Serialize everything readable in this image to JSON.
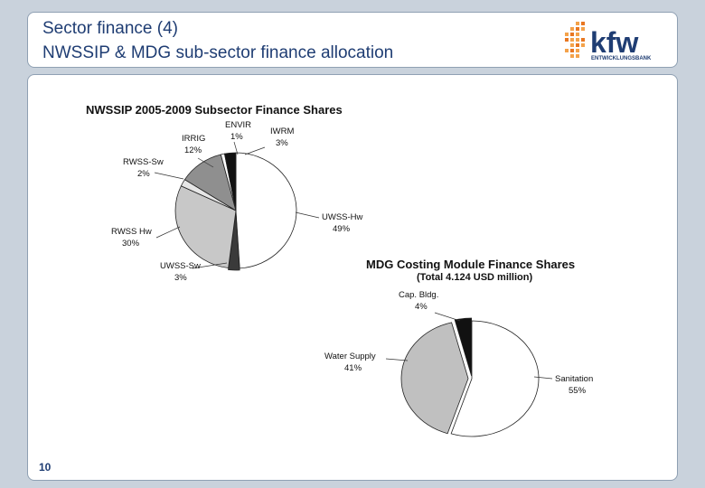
{
  "header": {
    "title_line1": "Sector finance (4)",
    "title_line2": "NWSSIP & MDG sub-sector finance allocation"
  },
  "logo": {
    "wordmark": "kfw",
    "subtext": "ENTWICKLUNGSBANK",
    "icon": "kfw-dot-logo-icon"
  },
  "page_number": "10",
  "colors": {
    "title": "#1f3d73",
    "frame_border": "#8fa0b3",
    "background": "#c9d2dc"
  },
  "chart_data": [
    {
      "type": "pie",
      "title": "NWSSIP 2005-2009 Subsector Finance Shares",
      "slices": [
        {
          "name": "UWSS-Hw",
          "value": 49,
          "label": "49%",
          "color": "#ffffff"
        },
        {
          "name": "UWSS-Sw",
          "value": 3,
          "label": "3%",
          "color": "#3a3a3a"
        },
        {
          "name": "RWSS Hw",
          "value": 30,
          "label": "30%",
          "color": "#c8c8c8"
        },
        {
          "name": "RWSS-Sw",
          "value": 2,
          "label": "2%",
          "color": "#e6e6e6"
        },
        {
          "name": "IRRIG",
          "value": 12,
          "label": "12%",
          "color": "#8f8f8f"
        },
        {
          "name": "ENVIR",
          "value": 1,
          "label": "1%",
          "color": "#ffffff"
        },
        {
          "name": "IWRM",
          "value": 3,
          "label": "3%",
          "color": "#111111"
        }
      ]
    },
    {
      "type": "pie",
      "title": "MDG Costing Module Finance Shares",
      "subtitle": "(Total 4.124 USD million)",
      "slices": [
        {
          "name": "Sanitation",
          "value": 55,
          "label": "55%",
          "color": "#ffffff"
        },
        {
          "name": "Water Supply",
          "value": 41,
          "label": "41%",
          "color": "#c0c0c0"
        },
        {
          "name": "Cap. Bldg.",
          "value": 4,
          "label": "4%",
          "color": "#111111"
        }
      ]
    }
  ]
}
